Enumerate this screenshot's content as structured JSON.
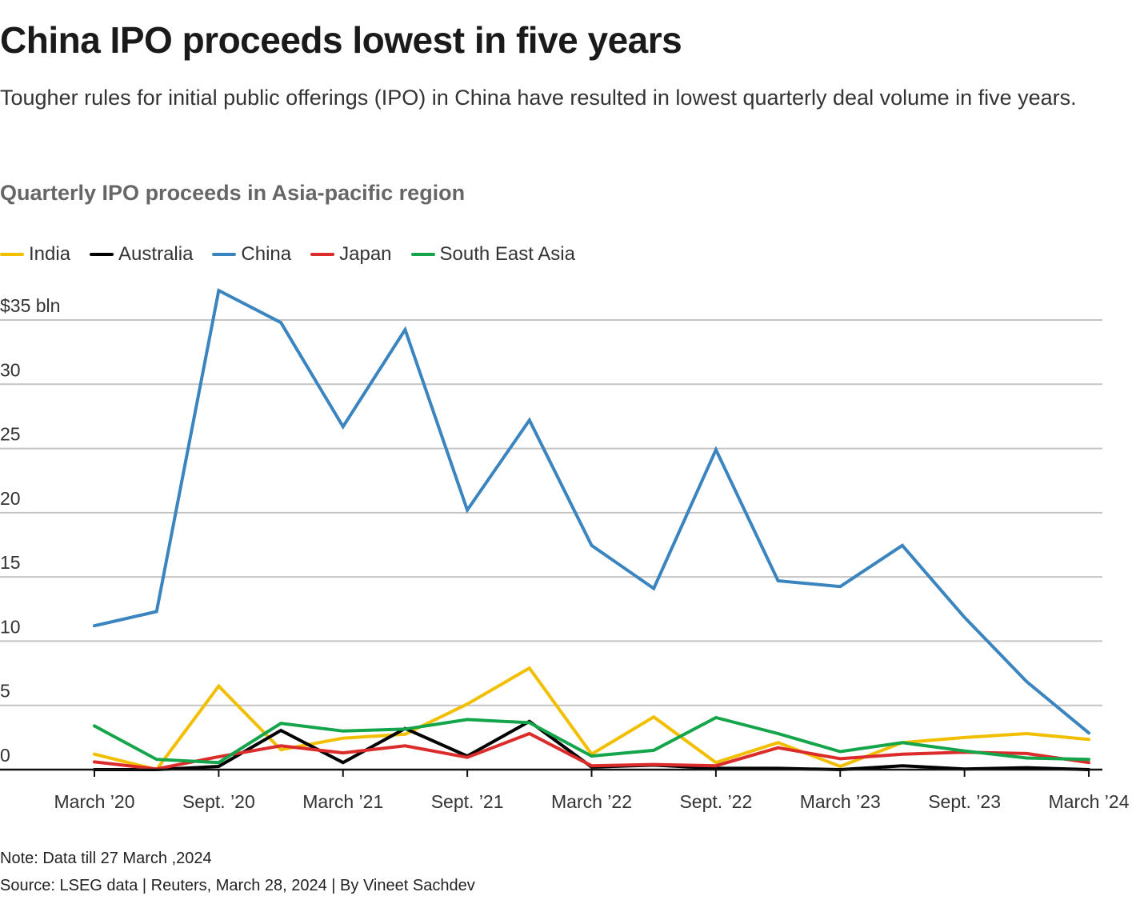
{
  "header": {
    "title": "China IPO proceeds lowest in five years",
    "subtitle": "Tougher rules for initial public offerings (IPO) in China have resulted in lowest quarterly deal volume in five years."
  },
  "footer": {
    "note": "Note: Data till 27 March ,2024",
    "source": "Source: LSEG data | Reuters, March 28, 2024 | By Vineet Sachdev"
  },
  "chart_data": {
    "type": "line",
    "title": "Quarterly IPO proceeds in Asia-pacific region",
    "xlabel": "",
    "ylabel": "",
    "x": [
      "March '20",
      "June '20",
      "Sept. '20",
      "Dec. '20",
      "March '21",
      "June '21",
      "Sept. '21",
      "Dec. '21",
      "March '22",
      "June '22",
      "Sept. '22",
      "Dec. '22",
      "March '23",
      "June '23",
      "Sept. '23",
      "Dec. '23",
      "March '24"
    ],
    "x_tick_labels": [
      "March ’20",
      "Sept. ’20",
      "March ’21",
      "Sept. ’21",
      "March ’22",
      "Sept. ’22",
      "March ’23",
      "Sept. ’23",
      "March ’24"
    ],
    "x_tick_every": 2,
    "y_ticks": [
      0,
      5,
      10,
      15,
      20,
      25,
      30,
      35
    ],
    "y_tick_labels": [
      "0",
      "5",
      "10",
      "15",
      "20",
      "25",
      "30",
      "$35 bln"
    ],
    "ylim": [
      0,
      35
    ],
    "grid": true,
    "legend_position": "top-left",
    "series": [
      {
        "name": "India",
        "color": "#F2BF00",
        "values": [
          1.2,
          0.0,
          6.5,
          1.55,
          2.45,
          2.75,
          5.1,
          7.9,
          1.2,
          4.1,
          0.55,
          2.1,
          0.25,
          2.1,
          2.5,
          2.8,
          2.35
        ]
      },
      {
        "name": "Australia",
        "color": "#000000",
        "values": [
          0.0,
          0.0,
          0.25,
          3.05,
          0.55,
          3.2,
          1.05,
          3.75,
          0.2,
          0.35,
          0.1,
          0.1,
          0.0,
          0.3,
          0.05,
          0.15,
          0.0
        ]
      },
      {
        "name": "China",
        "color": "#3A84BF",
        "values": [
          11.2,
          12.3,
          37.3,
          34.8,
          26.7,
          34.25,
          20.2,
          27.2,
          17.45,
          14.1,
          24.9,
          14.7,
          14.25,
          17.45,
          11.85,
          6.85,
          2.85
        ]
      },
      {
        "name": "Japan",
        "color": "#DC2B2B",
        "values": [
          0.6,
          0.05,
          1.0,
          1.85,
          1.3,
          1.85,
          0.95,
          2.8,
          0.3,
          0.4,
          0.3,
          1.7,
          0.85,
          1.2,
          1.35,
          1.25,
          0.55
        ]
      },
      {
        "name": "South East Asia",
        "color": "#14A54B",
        "values": [
          3.4,
          0.8,
          0.55,
          3.6,
          3.0,
          3.15,
          3.9,
          3.65,
          1.05,
          1.5,
          4.05,
          2.8,
          1.4,
          2.1,
          1.45,
          0.9,
          0.8
        ]
      }
    ]
  }
}
